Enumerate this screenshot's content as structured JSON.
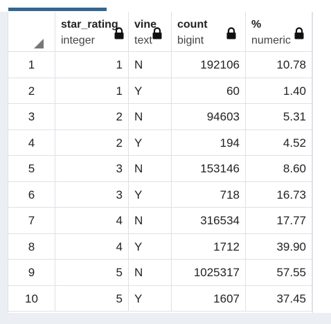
{
  "grid": {
    "columns": [
      {
        "name": "star_rating",
        "type": "integer",
        "align": "num"
      },
      {
        "name": "vine",
        "type": "text",
        "align": "txt"
      },
      {
        "name": "count",
        "type": "bigint",
        "align": "num"
      },
      {
        "name": "%",
        "type": "numeric",
        "align": "num"
      }
    ],
    "rows": [
      [
        "1",
        "1",
        "N",
        "192106",
        "10.78"
      ],
      [
        "2",
        "1",
        "Y",
        "60",
        "1.40"
      ],
      [
        "3",
        "2",
        "N",
        "94603",
        "5.31"
      ],
      [
        "4",
        "2",
        "Y",
        "194",
        "4.52"
      ],
      [
        "5",
        "3",
        "N",
        "153146",
        "8.60"
      ],
      [
        "6",
        "3",
        "Y",
        "718",
        "16.73"
      ],
      [
        "7",
        "4",
        "N",
        "316534",
        "17.77"
      ],
      [
        "8",
        "4",
        "Y",
        "1712",
        "39.90"
      ],
      [
        "9",
        "5",
        "N",
        "1025317",
        "57.55"
      ],
      [
        "10",
        "5",
        "Y",
        "1607",
        "37.45"
      ]
    ]
  },
  "icons": {
    "lock": "lock-icon",
    "select_all": "select-all-triangle-icon"
  },
  "colors": {
    "tab_active": "#326690",
    "grid_border": "#dde0e6",
    "panel_bg": "#ebeef3"
  }
}
